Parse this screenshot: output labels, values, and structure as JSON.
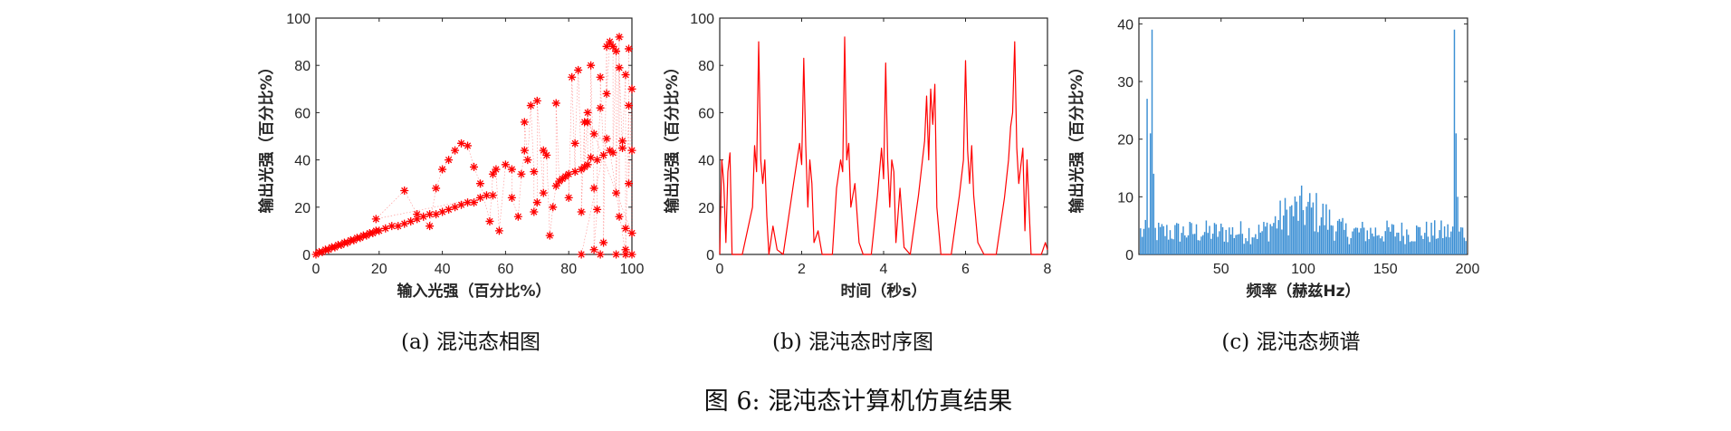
{
  "figure": {
    "caption": "图 6: 混沌态计算机仿真结果"
  },
  "chart_data": [
    {
      "type": "scatter",
      "subcaption": "(a) 混沌态相图",
      "xlabel": "输入光强（百分比%）",
      "ylabel": "输出光强（百分比%）",
      "xlim": [
        0,
        100
      ],
      "ylim": [
        0,
        100
      ],
      "xticks": [
        0,
        20,
        40,
        60,
        80,
        100
      ],
      "yticks": [
        0,
        20,
        40,
        60,
        80,
        100
      ],
      "marker": "*",
      "color": "#ff0000",
      "note_lines": "faint dotted lines connect consecutive points",
      "points": [
        [
          0,
          0
        ],
        [
          1,
          1
        ],
        [
          2,
          1
        ],
        [
          3,
          2
        ],
        [
          4,
          2
        ],
        [
          5,
          3
        ],
        [
          6,
          3
        ],
        [
          7,
          4
        ],
        [
          8,
          4
        ],
        [
          9,
          5
        ],
        [
          10,
          5
        ],
        [
          11,
          6
        ],
        [
          12,
          6
        ],
        [
          13,
          7
        ],
        [
          14,
          7
        ],
        [
          15,
          8
        ],
        [
          16,
          8
        ],
        [
          17,
          9
        ],
        [
          18,
          9
        ],
        [
          19,
          10
        ],
        [
          20,
          10
        ],
        [
          22,
          11
        ],
        [
          24,
          12
        ],
        [
          26,
          12
        ],
        [
          28,
          13
        ],
        [
          30,
          14
        ],
        [
          32,
          15
        ],
        [
          34,
          16
        ],
        [
          36,
          17
        ],
        [
          38,
          17
        ],
        [
          40,
          18
        ],
        [
          42,
          19
        ],
        [
          44,
          20
        ],
        [
          46,
          21
        ],
        [
          48,
          22
        ],
        [
          50,
          22
        ],
        [
          52,
          24
        ],
        [
          54,
          25
        ],
        [
          56,
          25
        ],
        [
          19,
          15
        ],
        [
          28,
          27
        ],
        [
          32,
          17
        ],
        [
          36,
          12
        ],
        [
          38,
          28
        ],
        [
          40,
          36
        ],
        [
          42,
          40
        ],
        [
          44,
          44
        ],
        [
          46,
          47
        ],
        [
          48,
          46
        ],
        [
          50,
          37
        ],
        [
          52,
          30
        ],
        [
          55,
          14
        ],
        [
          56,
          34
        ],
        [
          57,
          36
        ],
        [
          58,
          10
        ],
        [
          60,
          38
        ],
        [
          62,
          36
        ],
        [
          62,
          24
        ],
        [
          64,
          16
        ],
        [
          65,
          34
        ],
        [
          66,
          44
        ],
        [
          66,
          56
        ],
        [
          67,
          40
        ],
        [
          68,
          63
        ],
        [
          69,
          35
        ],
        [
          69,
          18
        ],
        [
          70,
          22
        ],
        [
          70,
          65
        ],
        [
          72,
          26
        ],
        [
          72,
          44
        ],
        [
          73,
          42
        ],
        [
          74,
          8
        ],
        [
          75,
          20
        ],
        [
          76,
          29
        ],
        [
          76,
          64
        ],
        [
          77,
          31
        ],
        [
          78,
          32
        ],
        [
          79,
          33
        ],
        [
          80,
          34
        ],
        [
          80,
          24
        ],
        [
          81,
          75
        ],
        [
          82,
          35
        ],
        [
          82,
          47
        ],
        [
          83,
          78
        ],
        [
          84,
          36
        ],
        [
          84,
          18
        ],
        [
          85,
          56
        ],
        [
          85,
          37
        ],
        [
          86,
          60
        ],
        [
          86,
          38
        ],
        [
          87,
          41
        ],
        [
          87,
          80
        ],
        [
          88,
          28
        ],
        [
          88,
          2
        ],
        [
          89,
          19
        ],
        [
          89,
          40
        ],
        [
          90,
          62
        ],
        [
          90,
          75
        ],
        [
          91,
          42
        ],
        [
          91,
          5
        ],
        [
          92,
          88
        ],
        [
          92,
          68
        ],
        [
          93,
          90
        ],
        [
          94,
          88
        ],
        [
          94,
          43
        ],
        [
          95,
          86
        ],
        [
          95,
          26
        ],
        [
          96,
          92
        ],
        [
          96,
          16
        ],
        [
          96,
          79
        ],
        [
          97,
          45
        ],
        [
          97,
          48
        ],
        [
          98,
          76
        ],
        [
          98,
          11
        ],
        [
          98,
          2
        ],
        [
          99,
          63
        ],
        [
          99,
          87
        ],
        [
          99,
          30
        ],
        [
          100,
          70
        ],
        [
          100,
          44
        ],
        [
          100,
          9
        ],
        [
          88,
          51
        ],
        [
          86,
          56
        ],
        [
          93,
          44
        ],
        [
          98,
          0
        ],
        [
          100,
          0
        ],
        [
          95,
          0
        ],
        [
          90,
          0
        ],
        [
          84,
          0
        ],
        [
          92,
          49
        ]
      ]
    },
    {
      "type": "line",
      "subcaption": "(b) 混沌态时序图",
      "xlabel": "时间（秒s）",
      "ylabel": "输出光强（百分比%）",
      "xlim": [
        0,
        8
      ],
      "ylim": [
        0,
        100
      ],
      "xticks": [
        0,
        2,
        4,
        6,
        8
      ],
      "yticks": [
        0,
        20,
        40,
        60,
        80,
        100
      ],
      "color": "#ff0000",
      "points": [
        [
          0,
          0
        ],
        [
          0.05,
          40
        ],
        [
          0.1,
          30
        ],
        [
          0.15,
          5
        ],
        [
          0.2,
          35
        ],
        [
          0.25,
          43
        ],
        [
          0.3,
          0
        ],
        [
          0.55,
          0
        ],
        [
          0.8,
          20
        ],
        [
          0.85,
          46
        ],
        [
          0.9,
          35
        ],
        [
          0.95,
          90
        ],
        [
          1.0,
          40
        ],
        [
          1.05,
          30
        ],
        [
          1.1,
          40
        ],
        [
          1.15,
          16
        ],
        [
          1.2,
          0
        ],
        [
          1.3,
          12
        ],
        [
          1.4,
          2
        ],
        [
          1.55,
          0
        ],
        [
          1.8,
          30
        ],
        [
          1.95,
          47
        ],
        [
          2.0,
          38
        ],
        [
          2.05,
          83
        ],
        [
          2.1,
          46
        ],
        [
          2.15,
          20
        ],
        [
          2.2,
          40
        ],
        [
          2.25,
          30
        ],
        [
          2.3,
          5
        ],
        [
          2.4,
          10
        ],
        [
          2.5,
          0
        ],
        [
          2.75,
          0
        ],
        [
          2.85,
          28
        ],
        [
          2.95,
          40
        ],
        [
          3.0,
          35
        ],
        [
          3.05,
          92
        ],
        [
          3.1,
          40
        ],
        [
          3.15,
          47
        ],
        [
          3.2,
          20
        ],
        [
          3.3,
          30
        ],
        [
          3.4,
          5
        ],
        [
          3.5,
          0
        ],
        [
          3.7,
          0
        ],
        [
          3.85,
          25
        ],
        [
          3.95,
          45
        ],
        [
          4.0,
          32
        ],
        [
          4.05,
          81
        ],
        [
          4.1,
          40
        ],
        [
          4.15,
          20
        ],
        [
          4.2,
          40
        ],
        [
          4.25,
          35
        ],
        [
          4.3,
          5
        ],
        [
          4.4,
          28
        ],
        [
          4.5,
          3
        ],
        [
          4.65,
          0
        ],
        [
          4.85,
          25
        ],
        [
          5.0,
          48
        ],
        [
          5.05,
          67
        ],
        [
          5.1,
          40
        ],
        [
          5.15,
          70
        ],
        [
          5.2,
          55
        ],
        [
          5.25,
          72
        ],
        [
          5.3,
          20
        ],
        [
          5.4,
          0
        ],
        [
          5.65,
          0
        ],
        [
          5.85,
          25
        ],
        [
          5.95,
          40
        ],
        [
          6.0,
          82
        ],
        [
          6.05,
          44
        ],
        [
          6.1,
          30
        ],
        [
          6.15,
          46
        ],
        [
          6.2,
          25
        ],
        [
          6.3,
          5
        ],
        [
          6.45,
          0
        ],
        [
          6.75,
          0
        ],
        [
          6.95,
          24
        ],
        [
          7.05,
          40
        ],
        [
          7.1,
          54
        ],
        [
          7.15,
          60
        ],
        [
          7.2,
          90
        ],
        [
          7.25,
          45
        ],
        [
          7.3,
          30
        ],
        [
          7.4,
          45
        ],
        [
          7.45,
          10
        ],
        [
          7.5,
          40
        ],
        [
          7.6,
          0
        ],
        [
          7.85,
          0
        ],
        [
          7.95,
          5
        ],
        [
          8.0,
          2
        ]
      ]
    },
    {
      "type": "bar",
      "subcaption": "(c) 混沌态频谱",
      "xlabel": "频率（赫兹Hz）",
      "ylabel": "输出光强（百分比%）",
      "xlim": [
        0,
        200
      ],
      "ylim": [
        0,
        41
      ],
      "xticks": [
        50,
        100,
        150,
        200
      ],
      "yticks": [
        0,
        10,
        20,
        30,
        40
      ],
      "color": "#3b8fd4",
      "peaks": [
        [
          5,
          27
        ],
        [
          7,
          21
        ],
        [
          8,
          39
        ],
        [
          9,
          14
        ],
        [
          192,
          39
        ],
        [
          193,
          21
        ],
        [
          194,
          10
        ]
      ],
      "noise": {
        "base": 5,
        "bump_center": 100,
        "bump_height": 10
      }
    }
  ]
}
